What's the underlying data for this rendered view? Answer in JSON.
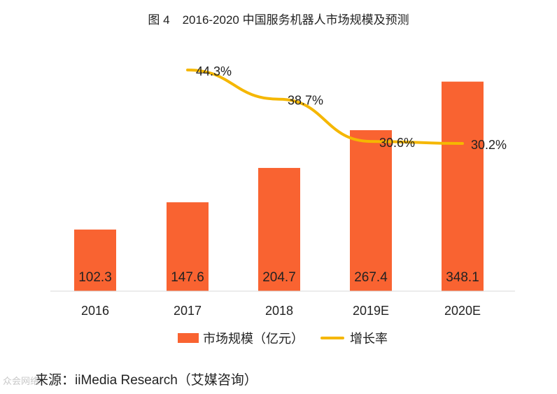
{
  "title": {
    "figure_no": "图 4",
    "text": "2016-2020 中国服务机器人市场规模及预测"
  },
  "chart_data": {
    "type": "bar",
    "categories": [
      "2016",
      "2017",
      "2018",
      "2019E",
      "2020E"
    ],
    "series": [
      {
        "name": "市场规模（亿元）",
        "type": "bar",
        "values": [
          102.3,
          147.6,
          204.7,
          267.4,
          348.1
        ],
        "labels": [
          "102.3",
          "147.6",
          "204.7",
          "267.4",
          "348.1"
        ],
        "color": "#f96331"
      },
      {
        "name": "增长率",
        "type": "line",
        "values": [
          null,
          44.3,
          38.7,
          30.6,
          30.2
        ],
        "labels": [
          "",
          "44.3%",
          "38.7%",
          "30.6%",
          "30.2%"
        ],
        "color": "#f5b700"
      }
    ],
    "legend_position": "bottom",
    "grid": false
  },
  "legend": {
    "bar_label": "市场规模（亿元）",
    "line_label": "增长率"
  },
  "source": "来源：iiMedia Research（艾媒咨询）",
  "watermark": "众会网络"
}
